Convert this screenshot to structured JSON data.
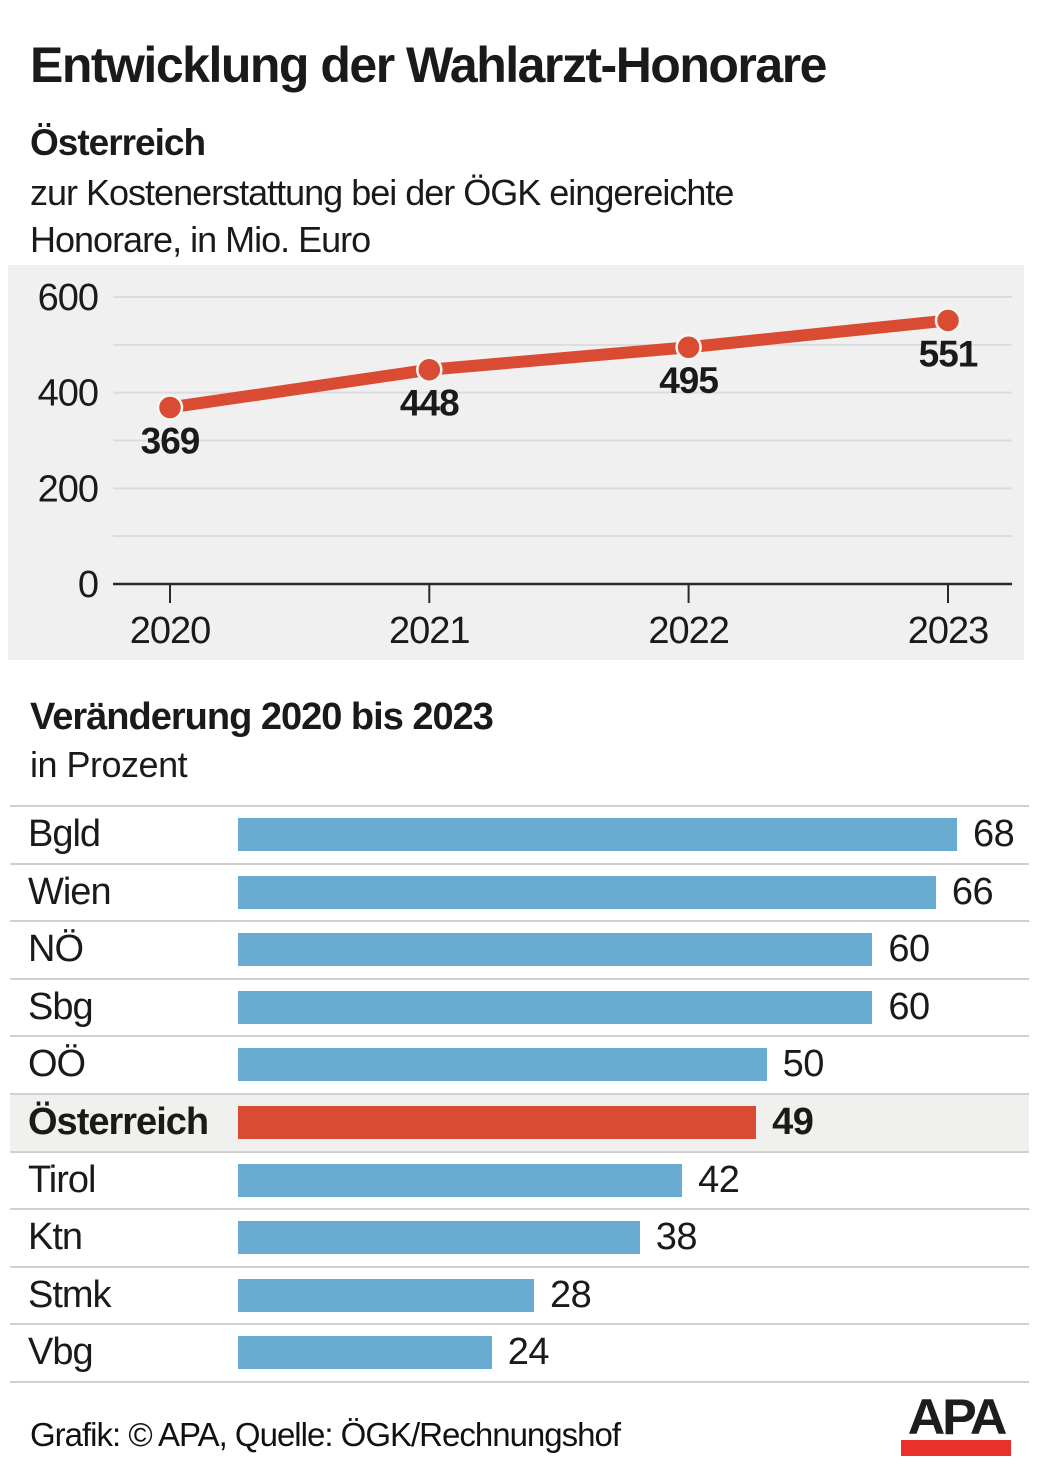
{
  "header": {
    "title": "Entwicklung der Wahlarzt-Honorare",
    "region": "Österreich",
    "description": "zur Kostenerstattung bei der ÖGK eingereichte Honorare, in Mio. Euro"
  },
  "bar_section": {
    "title": "Veränderung 2020 bis 2023",
    "unit": "in Prozent"
  },
  "footer": {
    "credit": "Grafik: © APA, Quelle: ÖGK/Rechnungshof",
    "logo_text": "APA"
  },
  "colors": {
    "line": "#d94c33",
    "point_ring": "#f6f6f4",
    "bar": "#68acd1",
    "highlight_bar": "#d94c33",
    "panel_background": "#f0f0f1",
    "gridline": "#dcdcde",
    "axis": "#2a2a28",
    "text": "#1a1a18",
    "separator": "#d0d0ce",
    "highlight_row_background": "#f0f0ef",
    "logo_red": "#e8312a"
  },
  "chart_data": [
    {
      "type": "line",
      "title": "Entwicklung der Wahlarzt-Honorare",
      "subtitle": "Österreich, zur Kostenerstattung bei der ÖGK eingereichte Honorare, in Mio. Euro",
      "x": [
        "2020",
        "2021",
        "2022",
        "2023"
      ],
      "values": [
        369,
        448,
        495,
        551
      ],
      "point_labels": [
        "369",
        "448",
        "495",
        "551"
      ],
      "ylim": [
        0,
        600
      ],
      "yticks": [
        0,
        200,
        400,
        600
      ],
      "gridline_step": 100,
      "grid": true,
      "legend": false
    },
    {
      "type": "bar",
      "orientation": "horizontal",
      "title": "Veränderung 2020 bis 2023",
      "xlabel": "in Prozent",
      "categories": [
        "Bgld",
        "Wien",
        "NÖ",
        "Sbg",
        "OÖ",
        "Österreich",
        "Tirol",
        "Ktn",
        "Stmk",
        "Vbg"
      ],
      "values": [
        68,
        66,
        60,
        60,
        50,
        49,
        42,
        38,
        28,
        24
      ],
      "highlight_category": "Österreich",
      "xlim": [
        0,
        68
      ],
      "value_labels": true,
      "grid": false
    }
  ]
}
